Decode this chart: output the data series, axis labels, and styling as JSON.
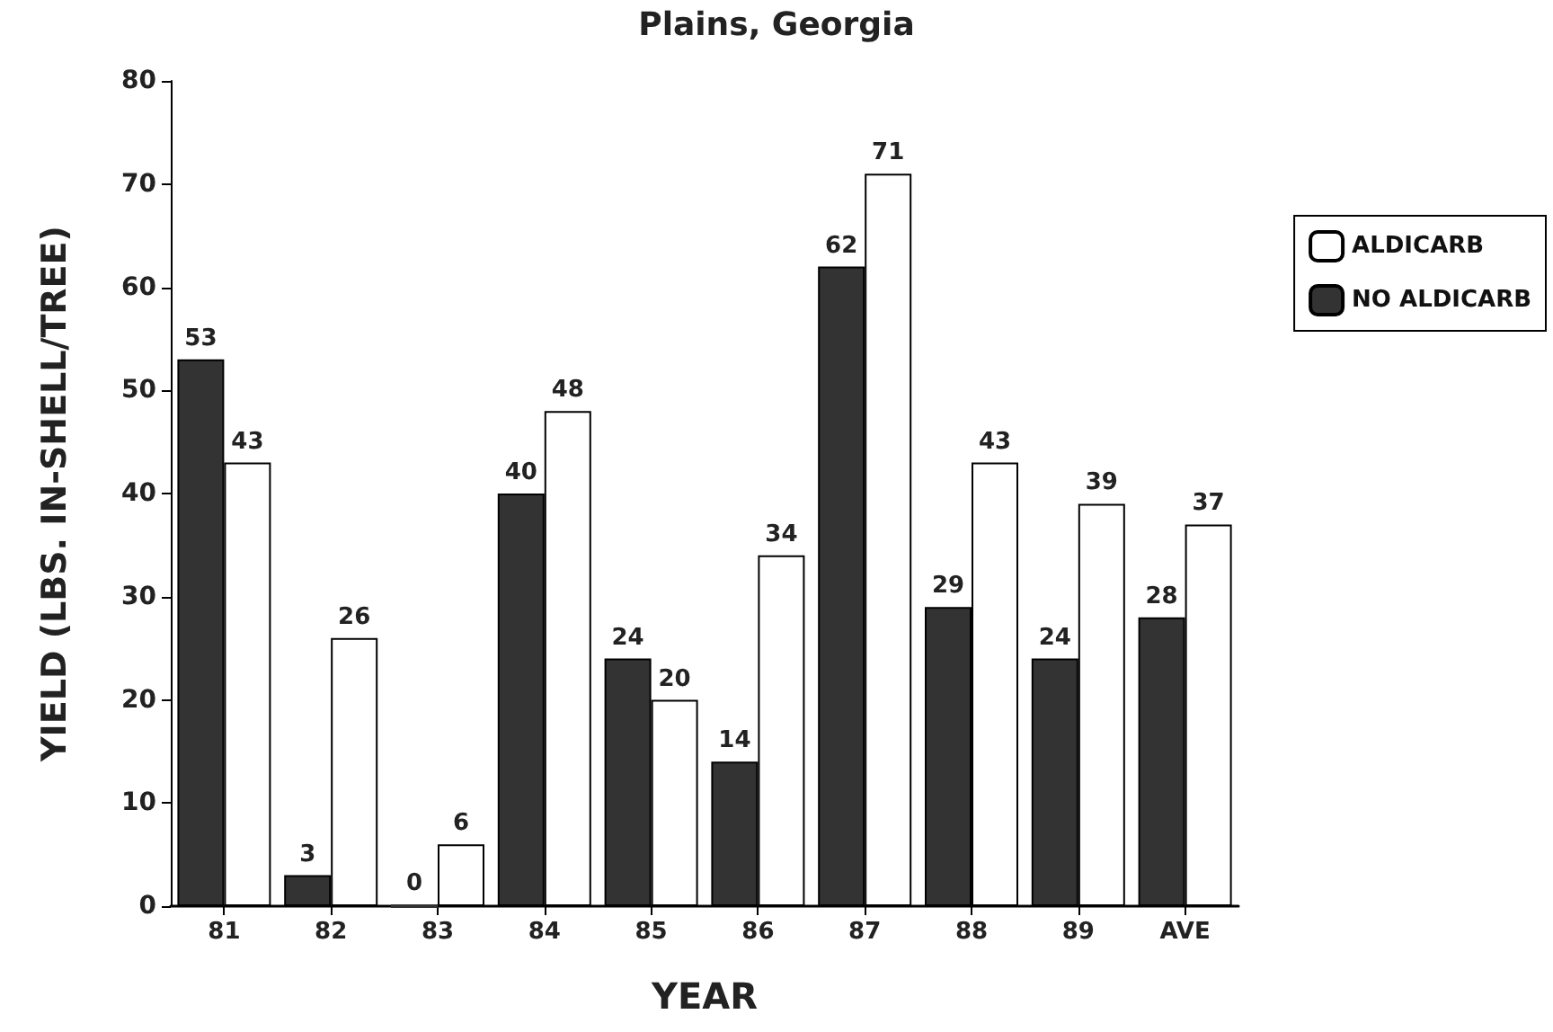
{
  "chart_data": {
    "type": "bar",
    "title": "Plains, Georgia",
    "xlabel": "YEAR",
    "ylabel": "YIELD (LBS. IN-SHELL/TREE)",
    "categories": [
      "81",
      "82",
      "83",
      "84",
      "85",
      "86",
      "87",
      "88",
      "89",
      "AVE"
    ],
    "series": [
      {
        "name": "NO ALDICARB",
        "color": "#333333",
        "values": [
          53,
          3,
          0,
          40,
          24,
          14,
          62,
          29,
          24,
          28
        ]
      },
      {
        "name": "ALDICARB",
        "color": "#ffffff",
        "values": [
          43,
          26,
          6,
          48,
          20,
          34,
          71,
          43,
          39,
          37
        ]
      }
    ],
    "ylim": [
      0,
      80
    ],
    "yticks": [
      0,
      10,
      20,
      30,
      40,
      50,
      60,
      70,
      80
    ],
    "data_labels": true,
    "grid": false,
    "legend": "top right"
  }
}
